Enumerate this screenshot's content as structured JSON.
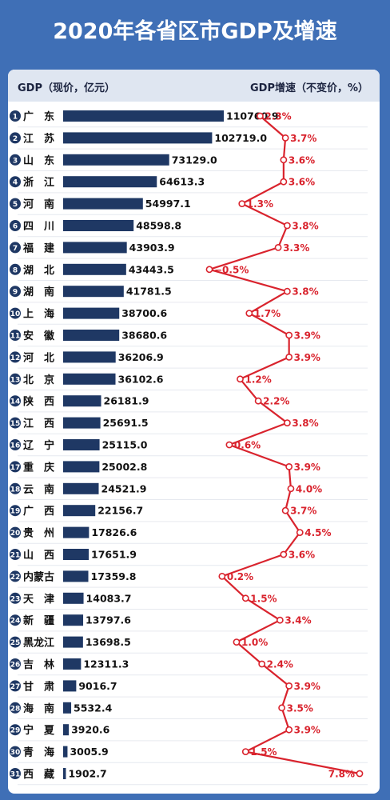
{
  "title": "2020年各省区市GDP及增速",
  "header": {
    "left_label": "GDP（现价，亿元）",
    "right_label": "GDP增速（不变价，%）"
  },
  "colors": {
    "background": "#3f6fb6",
    "bar": "#1f3864",
    "line": "#d9232d",
    "badge": "#1f3864"
  },
  "chart_data": {
    "type": "bar",
    "title": "2020年各省区市GDP及增速",
    "xlabel": "GDP（现价，亿元）",
    "ylabel": "",
    "grid": true,
    "ranks": [
      1,
      2,
      3,
      4,
      5,
      6,
      7,
      8,
      9,
      10,
      11,
      12,
      13,
      14,
      15,
      16,
      17,
      18,
      19,
      20,
      21,
      22,
      23,
      24,
      25,
      26,
      27,
      28,
      29,
      30,
      31
    ],
    "categories": [
      "广　东",
      "江　苏",
      "山　东",
      "浙　江",
      "河　南",
      "四　川",
      "福　建",
      "湖　北",
      "湖　南",
      "上　海",
      "安　徽",
      "河　北",
      "北　京",
      "陕　西",
      "江　西",
      "辽　宁",
      "重　庆",
      "云　南",
      "广　西",
      "贵　州",
      "山　西",
      "内蒙古",
      "天　津",
      "新　疆",
      "黑龙江",
      "吉　林",
      "甘　肃",
      "海　南",
      "宁　夏",
      "青　海",
      "西　藏"
    ],
    "series": [
      {
        "name": "GDP（现价，亿元）",
        "type": "bar",
        "values": [
          110760.9,
          102719.0,
          73129.0,
          64613.3,
          54997.1,
          48598.8,
          43903.9,
          43443.5,
          41781.5,
          38700.6,
          38680.6,
          36206.9,
          36102.6,
          26181.9,
          25691.5,
          25115.0,
          25002.8,
          24521.9,
          22156.7,
          17826.6,
          17651.9,
          17359.8,
          14083.7,
          13797.6,
          13698.5,
          12311.3,
          9016.7,
          5532.4,
          3920.6,
          3005.9,
          1902.7
        ],
        "labels": [
          "110760.9",
          "102719.0",
          "73129.0",
          "64613.3",
          "54997.1",
          "48598.8",
          "43903.9",
          "43443.5",
          "41781.5",
          "38700.6",
          "38680.6",
          "36206.9",
          "36102.6",
          "26181.9",
          "25691.5",
          "25115.0",
          "25002.8",
          "24521.9",
          "22156.7",
          "17826.6",
          "17651.9",
          "17359.8",
          "14083.7",
          "13797.6",
          "13698.5",
          "12311.3",
          "9016.7",
          "5532.4",
          "3920.6",
          "3005.9",
          "1902.7"
        ]
      },
      {
        "name": "GDP增速（不变价，%）",
        "type": "line",
        "values": [
          2.3,
          3.7,
          3.6,
          3.6,
          1.3,
          3.8,
          3.3,
          -0.5,
          3.8,
          1.7,
          3.9,
          3.9,
          1.2,
          2.2,
          3.8,
          0.6,
          3.9,
          4.0,
          3.7,
          4.5,
          3.6,
          0.2,
          1.5,
          3.4,
          1.0,
          2.4,
          3.9,
          3.5,
          3.9,
          1.5,
          7.8
        ],
        "labels": [
          "2.3%",
          "3.7%",
          "3.6%",
          "3.6%",
          "1.3%",
          "3.8%",
          "3.3%",
          "−0.5%",
          "3.8%",
          "1.7%",
          "3.9%",
          "3.9%",
          "1.2%",
          "2.2%",
          "3.8%",
          "0.6%",
          "3.9%",
          "4.0%",
          "3.7%",
          "4.5%",
          "3.6%",
          "0.2%",
          "1.5%",
          "3.4%",
          "1.0%",
          "2.4%",
          "3.9%",
          "3.5%",
          "3.9%",
          "1.5%",
          "7.8%"
        ]
      }
    ]
  }
}
